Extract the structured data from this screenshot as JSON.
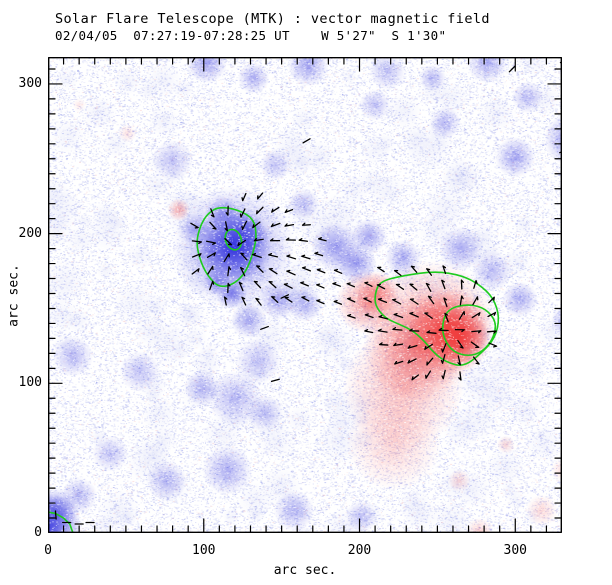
{
  "title": "Solar Flare Telescope (MTK) : vector magnetic field",
  "subtitle": "02/04/05  07:27:19-07:28:25 UT    W 5'27\"  S 1'30\"",
  "chart_data": {
    "type": "heatmap",
    "xlabel": "arc sec.",
    "ylabel": "arc sec.",
    "xlim": [
      0,
      330
    ],
    "ylim": [
      0,
      318
    ],
    "x_ticks": [
      0,
      100,
      200,
      300
    ],
    "y_ticks": [
      0,
      100,
      200,
      300
    ],
    "minor_tick_step": 10,
    "grid": false,
    "colors": {
      "background": "#ffffff",
      "blue_negative": "#3434de",
      "red_positive": "#f03a3a",
      "contour_green": "#1ecc1e",
      "vector_black": "#000000",
      "frame": "#000000"
    },
    "noise": {
      "seed": 7,
      "blue_speckles": 46000,
      "pink_speckles": 3000,
      "white_speckles": 22000,
      "mottle_count": 150
    },
    "blob_fields": "x_arcsec, y_arcsec, radius_arcsec, intensity, polarity(b=blue,r=red)",
    "blobs": [
      [
        102,
        314,
        9,
        0.45,
        "b"
      ],
      [
        132,
        304,
        7,
        0.4,
        "b"
      ],
      [
        167,
        312,
        9,
        0.45,
        "b"
      ],
      [
        218,
        308,
        8,
        0.3,
        "b"
      ],
      [
        247,
        304,
        6,
        0.35,
        "b"
      ],
      [
        282,
        314,
        9,
        0.4,
        "b"
      ],
      [
        308,
        291,
        7,
        0.35,
        "b"
      ],
      [
        210,
        286,
        7,
        0.3,
        "b"
      ],
      [
        255,
        274,
        7,
        0.35,
        "b"
      ],
      [
        80,
        249,
        9,
        0.3,
        "b"
      ],
      [
        146,
        246,
        7,
        0.3,
        "b"
      ],
      [
        300,
        251,
        9,
        0.45,
        "b"
      ],
      [
        336,
        263,
        12,
        0.55,
        "b"
      ],
      [
        338,
        286,
        7,
        0.4,
        "b"
      ],
      [
        338,
        308,
        7,
        0.3,
        "b"
      ],
      [
        112,
        214,
        8,
        0.4,
        "b"
      ],
      [
        94,
        203,
        7,
        0.35,
        "b"
      ],
      [
        164,
        220,
        7,
        0.3,
        "b"
      ],
      [
        228,
        184,
        8,
        0.4,
        "b"
      ],
      [
        198,
        180,
        9,
        0.5,
        "b"
      ],
      [
        206,
        198,
        8,
        0.45,
        "b"
      ],
      [
        185,
        191,
        11,
        0.5,
        "b"
      ],
      [
        265,
        190,
        10,
        0.4,
        "b"
      ],
      [
        285,
        175,
        9,
        0.35,
        "b"
      ],
      [
        303,
        156,
        8,
        0.4,
        "b"
      ],
      [
        333,
        142,
        7,
        0.35,
        "b"
      ],
      [
        148,
        156,
        9,
        0.45,
        "b"
      ],
      [
        129,
        142,
        8,
        0.4,
        "b"
      ],
      [
        165,
        153,
        8,
        0.4,
        "b"
      ],
      [
        118,
        160,
        7,
        0.6,
        "b"
      ],
      [
        108,
        168,
        6,
        0.5,
        "b"
      ],
      [
        16,
        118,
        9,
        0.35,
        "b"
      ],
      [
        59,
        108,
        9,
        0.3,
        "b"
      ],
      [
        99,
        97,
        8,
        0.35,
        "b"
      ],
      [
        120,
        90,
        12,
        0.35,
        "b"
      ],
      [
        135,
        115,
        10,
        0.3,
        "b"
      ],
      [
        139,
        80,
        8,
        0.3,
        "b"
      ],
      [
        76,
        35,
        9,
        0.35,
        "b"
      ],
      [
        40,
        53,
        8,
        0.3,
        "b"
      ],
      [
        20,
        25,
        8,
        0.35,
        "b"
      ],
      [
        115,
        42,
        11,
        0.4,
        "b"
      ],
      [
        158,
        15,
        9,
        0.35,
        "b"
      ],
      [
        201,
        11,
        7,
        0.3,
        "b"
      ],
      [
        0,
        4,
        15,
        0.9,
        "b"
      ],
      [
        5,
        15,
        10,
        0.6,
        "b"
      ],
      [
        119,
        191,
        17,
        1,
        "b"
      ],
      [
        119,
        191,
        27,
        0.5,
        "b"
      ],
      [
        126,
        200,
        10,
        0.55,
        "b"
      ],
      [
        205,
        154,
        14,
        0.5,
        "r"
      ],
      [
        212,
        160,
        10,
        0.45,
        "r"
      ],
      [
        258,
        135,
        19,
        0.9,
        "r"
      ],
      [
        264,
        131,
        13,
        0.95,
        "r"
      ],
      [
        247,
        140,
        28,
        0.45,
        "r"
      ],
      [
        237,
        124,
        24,
        0.5,
        "r"
      ],
      [
        228,
        97,
        27,
        0.33,
        "r"
      ],
      [
        222,
        60,
        21,
        0.22,
        "r"
      ],
      [
        84,
        216,
        5,
        0.4,
        "r"
      ],
      [
        51,
        267,
        4,
        0.15,
        "r"
      ],
      [
        20,
        286,
        3,
        0.12,
        "r"
      ],
      [
        264,
        35,
        5,
        0.2,
        "r"
      ],
      [
        277,
        1,
        6,
        0.25,
        "r"
      ],
      [
        317,
        15,
        7,
        0.2,
        "r"
      ],
      [
        330,
        42,
        5,
        0.15,
        "r"
      ],
      [
        294,
        59,
        4,
        0.2,
        "r"
      ],
      [
        340,
        8,
        6,
        0.25,
        "r"
      ]
    ],
    "contours": {
      "color": "#1ecc1e",
      "paths": [
        {
          "name": "blue-region-contour",
          "closed": true,
          "points": [
            [
              110,
              218
            ],
            [
              122,
              216
            ],
            [
              132,
              210
            ],
            [
              134,
              199
            ],
            [
              132,
              188
            ],
            [
              127,
              174
            ],
            [
              119,
              166
            ],
            [
              110,
              164
            ],
            [
              103,
              171
            ],
            [
              98,
              181
            ],
            [
              95,
              194
            ],
            [
              98,
              206
            ],
            [
              103,
              214
            ]
          ]
        },
        {
          "name": "blue-core-contour",
          "ellipse": [
            119,
            196,
            5,
            7,
            -20
          ]
        },
        {
          "name": "red-region-contour",
          "closed": true,
          "points": [
            [
              213,
              168
            ],
            [
              228,
              172
            ],
            [
              249,
              175
            ],
            [
              266,
              172
            ],
            [
              277,
              166
            ],
            [
              286,
              157
            ],
            [
              290,
              144
            ],
            [
              287,
              130
            ],
            [
              278,
              120
            ],
            [
              267,
              111
            ],
            [
              256,
              114
            ],
            [
              248,
              120
            ],
            [
              241,
              129
            ],
            [
              233,
              136
            ],
            [
              224,
              140
            ],
            [
              216,
              144
            ],
            [
              210,
              152
            ],
            [
              210,
              160
            ]
          ]
        },
        {
          "name": "red-core-contour",
          "closed": true,
          "points": [
            [
              257,
              150
            ],
            [
              270,
              153
            ],
            [
              281,
              150
            ],
            [
              288,
              141
            ],
            [
              286,
              130
            ],
            [
              279,
              121
            ],
            [
              270,
              118
            ],
            [
              260,
              121
            ],
            [
              254,
              130
            ],
            [
              253,
              140
            ]
          ]
        },
        {
          "name": "corner-contour",
          "closed": false,
          "points": [
            [
              0,
              14
            ],
            [
              5,
              13
            ],
            [
              10,
              10
            ],
            [
              14,
              6
            ],
            [
              16,
              0
            ]
          ]
        }
      ]
    },
    "vectors": {
      "color": "#000000",
      "grid_step_arcsec": 10,
      "threshold": 0.026,
      "pole_fields": "x_arcsec, y_arcsec, sign",
      "poles": [
        [
          119,
          191,
          -1
        ],
        [
          258,
          135,
          1
        ]
      ]
    },
    "stray_tick_fields": "x_arcsec, y_arcsec, angle_deg",
    "stray_ticks": [
      [
        94,
        317,
        -60
      ],
      [
        166,
        262,
        -30
      ],
      [
        298,
        310,
        -45
      ],
      [
        331,
        316,
        -40
      ],
      [
        331,
        255,
        -20
      ],
      [
        152,
        158,
        -25
      ],
      [
        139,
        137,
        -20
      ],
      [
        146,
        102,
        -15
      ],
      [
        12,
        7,
        0
      ],
      [
        20,
        6,
        0
      ],
      [
        27,
        7,
        0
      ],
      [
        5,
        12,
        85
      ]
    ]
  }
}
